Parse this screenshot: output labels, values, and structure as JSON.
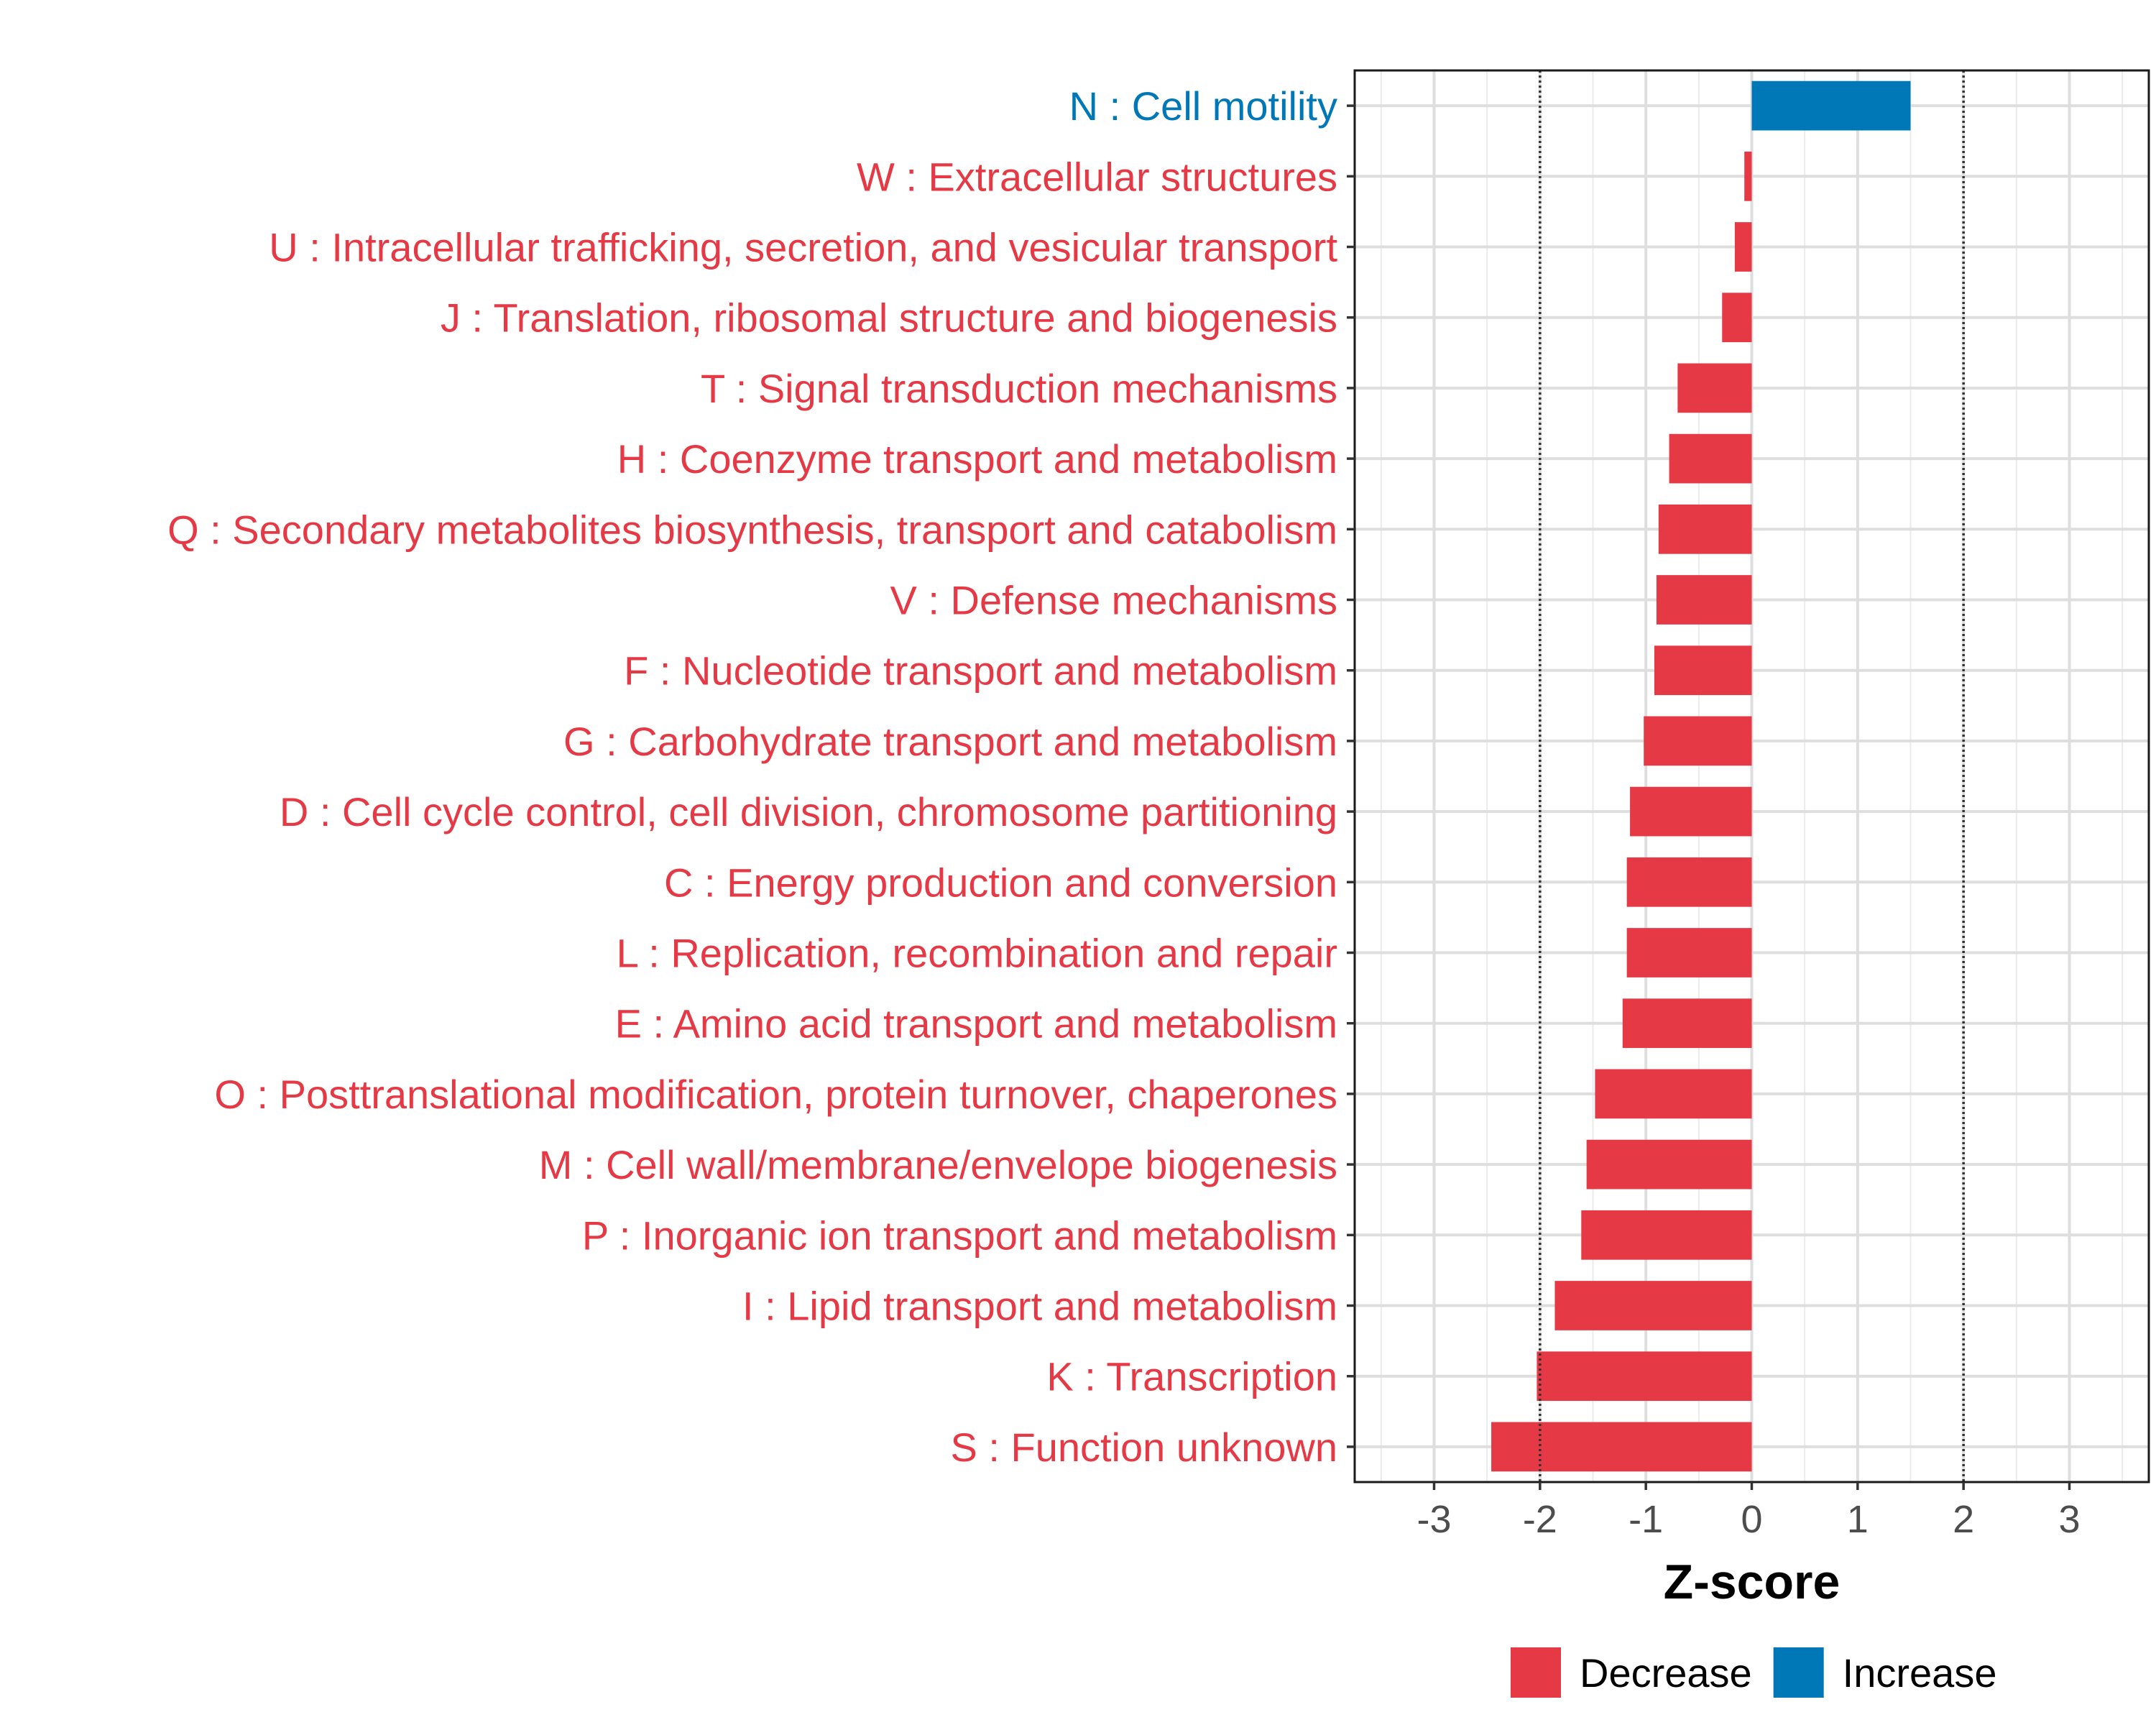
{
  "chart_data": {
    "type": "bar",
    "orientation": "horizontal",
    "categories": [
      "N : Cell motility",
      "W : Extracellular structures",
      "U : Intracellular trafficking, secretion, and vesicular transport",
      "J : Translation, ribosomal structure and biogenesis",
      "T : Signal transduction mechanisms",
      "H : Coenzyme transport and metabolism",
      "Q : Secondary metabolites biosynthesis, transport and catabolism",
      "V : Defense mechanisms",
      "F : Nucleotide transport and metabolism",
      "G : Carbohydrate transport and metabolism",
      "D : Cell cycle control, cell division, chromosome partitioning",
      "C : Energy production and conversion",
      "L : Replication, recombination and repair",
      "E : Amino acid transport and metabolism",
      "O : Posttranslational modification, protein turnover, chaperones",
      "M : Cell wall/membrane/envelope biogenesis",
      "P : Inorganic ion transport and metabolism",
      "I : Lipid transport and metabolism",
      "K : Transcription",
      "S : Function unknown"
    ],
    "values": [
      1.5,
      -0.07,
      -0.16,
      -0.28,
      -0.7,
      -0.78,
      -0.88,
      -0.9,
      -0.92,
      -1.02,
      -1.15,
      -1.18,
      -1.18,
      -1.22,
      -1.48,
      -1.56,
      -1.61,
      -1.86,
      -2.03,
      -2.46
    ],
    "groups": [
      "Increase",
      "Decrease",
      "Decrease",
      "Decrease",
      "Decrease",
      "Decrease",
      "Decrease",
      "Decrease",
      "Decrease",
      "Decrease",
      "Decrease",
      "Decrease",
      "Decrease",
      "Decrease",
      "Decrease",
      "Decrease",
      "Decrease",
      "Decrease",
      "Decrease",
      "Decrease"
    ],
    "xlim": [
      -3.75,
      3.75
    ],
    "xticks": [
      -3,
      -2,
      -1,
      0,
      1,
      2,
      3
    ],
    "reference_lines": [
      -2,
      2
    ],
    "xlabel": "Z-score",
    "ylabel": "",
    "legend": {
      "position": "bottom",
      "items": [
        {
          "label": "Decrease",
          "color": "#e63946"
        },
        {
          "label": "Increase",
          "color": "#0077b6"
        }
      ]
    },
    "colors": {
      "Decrease": "#e63946",
      "Increase": "#0077b6"
    }
  }
}
